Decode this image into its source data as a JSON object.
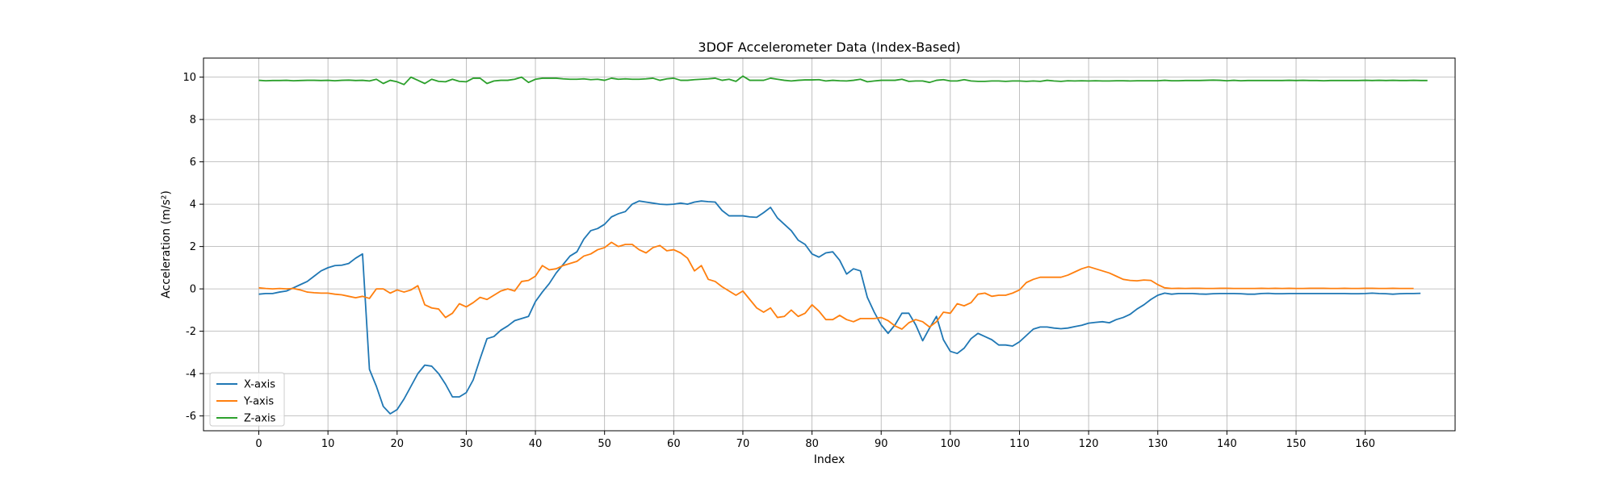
{
  "chart_data": {
    "type": "line",
    "title": "3DOF Accelerometer Data (Index-Based)",
    "xlabel": "Index",
    "ylabel": "Acceleration (m/s²)",
    "xlim": [
      -8,
      173
    ],
    "ylim": [
      -6.7,
      10.9
    ],
    "xticks": [
      0,
      10,
      20,
      30,
      40,
      50,
      60,
      70,
      80,
      90,
      100,
      110,
      120,
      130,
      140,
      150,
      160
    ],
    "yticks": [
      -6,
      -4,
      -2,
      0,
      2,
      4,
      6,
      8,
      10
    ],
    "grid": true,
    "legend_position": "lower-left",
    "series": [
      {
        "name": "X-axis",
        "color": "#1f77b4",
        "values": [
          -0.25,
          -0.22,
          -0.22,
          -0.15,
          -0.1,
          0.05,
          0.2,
          0.35,
          0.6,
          0.85,
          1.0,
          1.1,
          1.12,
          1.2,
          1.45,
          1.65,
          -3.8,
          -4.6,
          -5.55,
          -5.9,
          -5.7,
          -5.2,
          -4.6,
          -4.0,
          -3.6,
          -3.65,
          -4.0,
          -4.5,
          -5.1,
          -5.1,
          -4.9,
          -4.3,
          -3.3,
          -2.35,
          -2.25,
          -1.95,
          -1.75,
          -1.5,
          -1.4,
          -1.3,
          -0.6,
          -0.15,
          0.25,
          0.75,
          1.15,
          1.55,
          1.75,
          2.35,
          2.75,
          2.85,
          3.05,
          3.4,
          3.55,
          3.65,
          4.0,
          4.15,
          4.1,
          4.05,
          4.0,
          3.98,
          4.0,
          4.05,
          4.0,
          4.1,
          4.15,
          4.12,
          4.1,
          3.7,
          3.45,
          3.45,
          3.45,
          3.4,
          3.38,
          3.6,
          3.85,
          3.35,
          3.05,
          2.75,
          2.3,
          2.1,
          1.65,
          1.5,
          1.7,
          1.75,
          1.35,
          0.7,
          0.95,
          0.85,
          -0.4,
          -1.1,
          -1.7,
          -2.1,
          -1.7,
          -1.15,
          -1.15,
          -1.7,
          -2.45,
          -1.85,
          -1.3,
          -2.4,
          -2.95,
          -3.05,
          -2.8,
          -2.35,
          -2.1,
          -2.25,
          -2.4,
          -2.65,
          -2.65,
          -2.7,
          -2.5,
          -2.2,
          -1.9,
          -1.8,
          -1.8,
          -1.85,
          -1.88,
          -1.85,
          -1.78,
          -1.72,
          -1.62,
          -1.58,
          -1.55,
          -1.6,
          -1.45,
          -1.35,
          -1.2,
          -0.95,
          -0.75,
          -0.5,
          -0.3,
          -0.2,
          -0.25,
          -0.22,
          -0.22,
          -0.22,
          -0.24,
          -0.25,
          -0.23,
          -0.22,
          -0.22,
          -0.22,
          -0.23,
          -0.25,
          -0.25,
          -0.22,
          -0.21,
          -0.23,
          -0.23,
          -0.22,
          -0.22,
          -0.22,
          -0.22,
          -0.22,
          -0.22,
          -0.22,
          -0.22,
          -0.22,
          -0.23,
          -0.23,
          -0.22,
          -0.2,
          -0.22,
          -0.23,
          -0.25,
          -0.23,
          -0.22,
          -0.22,
          -0.21
        ],
        "comment": "x index 0..165 step 1"
      },
      {
        "name": "Y-axis",
        "color": "#ff7f0e",
        "values": [
          0.05,
          0.02,
          0.0,
          0.02,
          0.0,
          0.02,
          -0.05,
          -0.15,
          -0.18,
          -0.2,
          -0.2,
          -0.25,
          -0.28,
          -0.35,
          -0.42,
          -0.35,
          -0.45,
          0.0,
          0.0,
          -0.2,
          -0.05,
          -0.15,
          -0.05,
          0.15,
          -0.75,
          -0.9,
          -0.95,
          -1.35,
          -1.15,
          -0.7,
          -0.85,
          -0.65,
          -0.4,
          -0.5,
          -0.3,
          -0.1,
          0.0,
          -0.1,
          0.35,
          0.4,
          0.6,
          1.1,
          0.9,
          0.95,
          1.1,
          1.2,
          1.3,
          1.55,
          1.65,
          1.85,
          1.95,
          2.2,
          2.0,
          2.1,
          2.1,
          1.85,
          1.7,
          1.95,
          2.05,
          1.8,
          1.85,
          1.7,
          1.45,
          0.85,
          1.1,
          0.45,
          0.35,
          0.1,
          -0.1,
          -0.3,
          -0.1,
          -0.5,
          -0.9,
          -1.1,
          -0.9,
          -1.35,
          -1.3,
          -1.0,
          -1.3,
          -1.15,
          -0.75,
          -1.05,
          -1.45,
          -1.45,
          -1.25,
          -1.45,
          -1.55,
          -1.4,
          -1.4,
          -1.4,
          -1.35,
          -1.5,
          -1.75,
          -1.9,
          -1.6,
          -1.45,
          -1.55,
          -1.8,
          -1.55,
          -1.1,
          -1.15,
          -0.7,
          -0.8,
          -0.65,
          -0.25,
          -0.2,
          -0.35,
          -0.3,
          -0.3,
          -0.2,
          -0.05,
          0.3,
          0.45,
          0.55,
          0.55,
          0.55,
          0.55,
          0.65,
          0.8,
          0.95,
          1.05,
          0.95,
          0.85,
          0.75,
          0.6,
          0.45,
          0.4,
          0.38,
          0.42,
          0.4,
          0.2,
          0.05,
          0.02,
          0.03,
          0.02,
          0.03,
          0.03,
          0.02,
          0.02,
          0.03,
          0.03,
          0.02,
          0.02,
          0.02,
          0.02,
          0.03,
          0.02,
          0.03,
          0.02,
          0.03,
          0.02,
          0.02,
          0.03,
          0.03,
          0.03,
          0.02,
          0.02,
          0.03,
          0.02,
          0.02,
          0.03,
          0.03,
          0.02,
          0.02,
          0.03,
          0.02,
          0.02,
          0.02
        ]
      },
      {
        "name": "Z-axis",
        "color": "#2ca02c",
        "values": [
          9.85,
          9.83,
          9.84,
          9.84,
          9.85,
          9.83,
          9.84,
          9.85,
          9.85,
          9.84,
          9.85,
          9.83,
          9.85,
          9.86,
          9.84,
          9.85,
          9.82,
          9.9,
          9.7,
          9.85,
          9.78,
          9.65,
          10.0,
          9.85,
          9.7,
          9.9,
          9.8,
          9.78,
          9.9,
          9.8,
          9.78,
          9.95,
          9.95,
          9.7,
          9.82,
          9.85,
          9.85,
          9.9,
          10.0,
          9.75,
          9.9,
          9.95,
          9.95,
          9.95,
          9.92,
          9.9,
          9.9,
          9.92,
          9.88,
          9.9,
          9.85,
          9.95,
          9.9,
          9.92,
          9.9,
          9.9,
          9.92,
          9.95,
          9.85,
          9.92,
          9.95,
          9.85,
          9.85,
          9.88,
          9.9,
          9.92,
          9.95,
          9.85,
          9.9,
          9.8,
          10.05,
          9.85,
          9.85,
          9.85,
          9.95,
          9.9,
          9.85,
          9.82,
          9.85,
          9.87,
          9.87,
          9.88,
          9.82,
          9.85,
          9.83,
          9.82,
          9.85,
          9.9,
          9.78,
          9.82,
          9.85,
          9.85,
          9.85,
          9.9,
          9.8,
          9.82,
          9.82,
          9.75,
          9.85,
          9.88,
          9.82,
          9.82,
          9.88,
          9.82,
          9.8,
          9.8,
          9.82,
          9.82,
          9.8,
          9.82,
          9.82,
          9.8,
          9.82,
          9.8,
          9.85,
          9.82,
          9.8,
          9.83,
          9.82,
          9.83,
          9.82,
          9.83,
          9.82,
          9.82,
          9.83,
          9.83,
          9.82,
          9.83,
          9.83,
          9.83,
          9.83,
          9.85,
          9.83,
          9.83,
          9.84,
          9.84,
          9.84,
          9.85,
          9.86,
          9.85,
          9.83,
          9.85,
          9.83,
          9.84,
          9.84,
          9.84,
          9.84,
          9.84,
          9.84,
          9.85,
          9.84,
          9.85,
          9.84,
          9.84,
          9.83,
          9.84,
          9.84,
          9.84,
          9.84,
          9.84,
          9.85,
          9.84,
          9.85,
          9.84,
          9.85,
          9.84,
          9.84,
          9.85,
          9.84,
          9.84
        ]
      }
    ]
  }
}
